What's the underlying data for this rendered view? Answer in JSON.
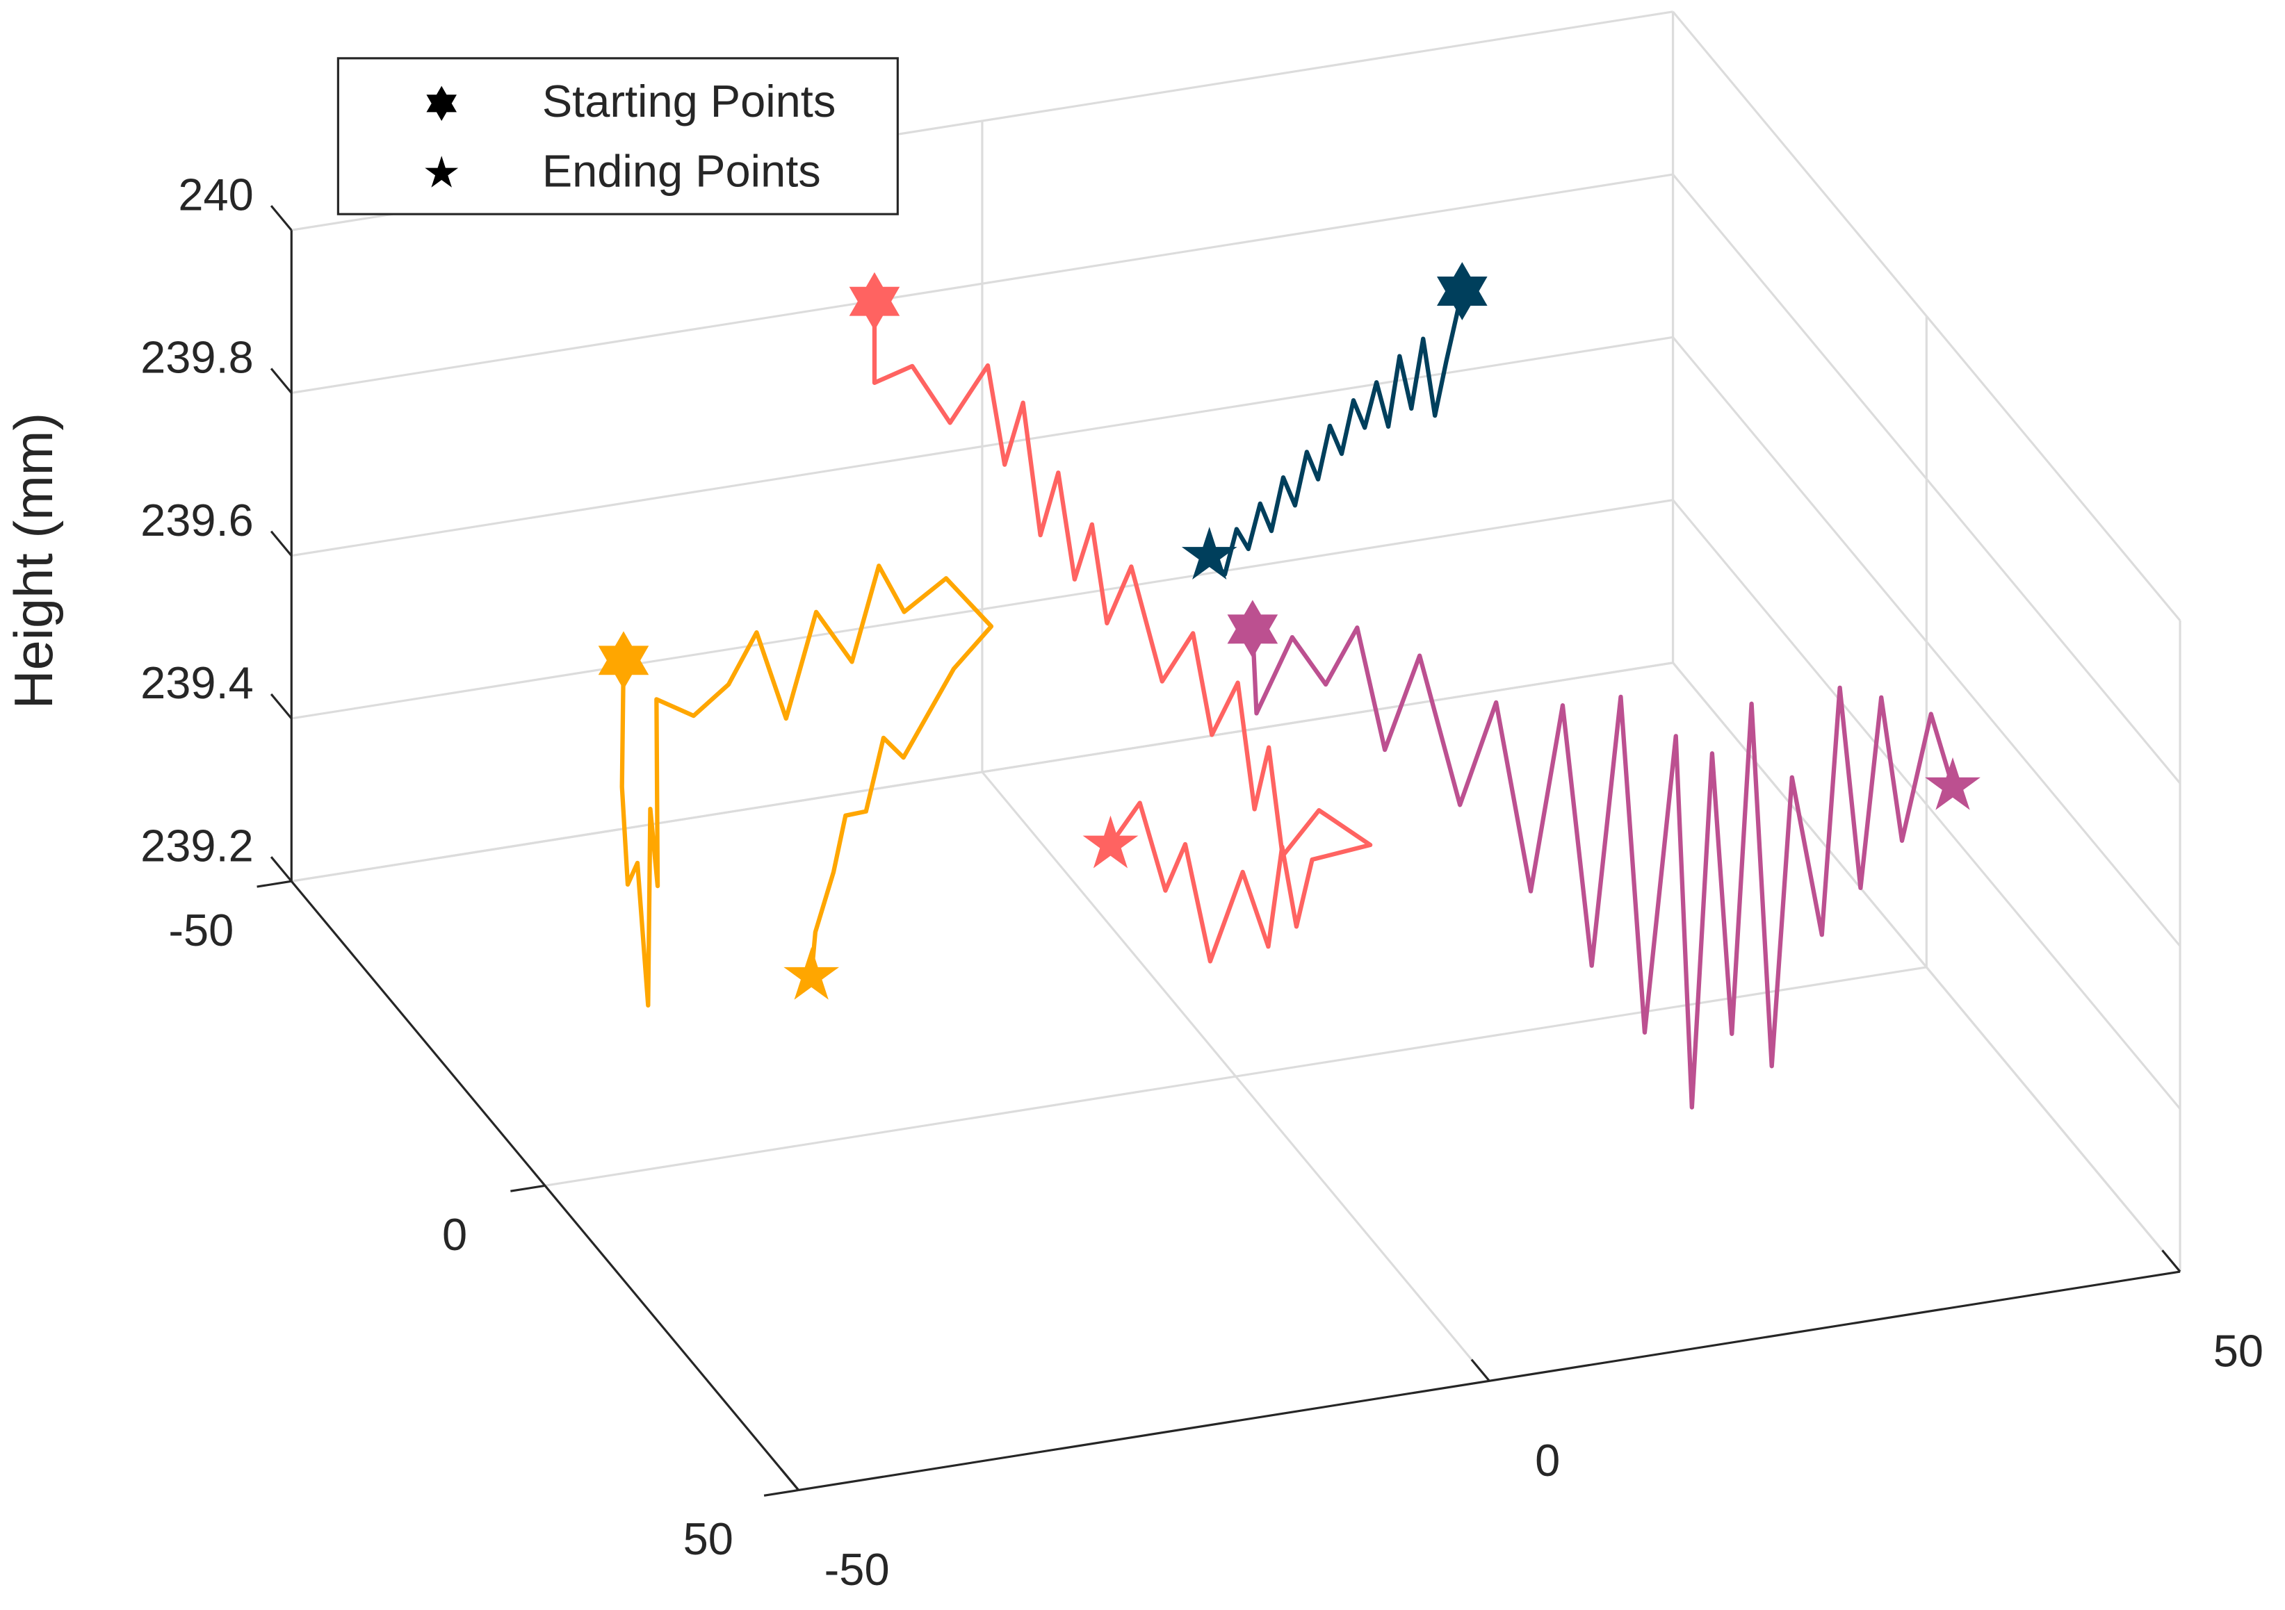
{
  "chart_data": {
    "type": "line3d",
    "zlabel": "Height (mm)",
    "xlim": [
      -50,
      50
    ],
    "ylim": [
      -50,
      50
    ],
    "zlim": [
      239.2,
      240
    ],
    "xticks": [
      -50,
      0,
      50
    ],
    "yticks": [
      -50,
      0,
      50
    ],
    "zticks": [
      239.2,
      239.4,
      239.6,
      239.8,
      240
    ],
    "grid": true,
    "legend": {
      "corner": "upper left",
      "entries": [
        {
          "label": "Starting Points",
          "marker": "hexagram"
        },
        {
          "label": "Ending Points",
          "marker": "pentagram"
        }
      ]
    },
    "series": [
      {
        "color": "#003f5c",
        "x": [
          30.3,
          29,
          28,
          27,
          26,
          25,
          24,
          23,
          22,
          21,
          20,
          19,
          18,
          17,
          16,
          15,
          14,
          13,
          12,
          11,
          10,
          8.7
        ],
        "y": [
          -37.9,
          -37.5,
          -37,
          -36.6,
          -36.2,
          -35.8,
          -35.3,
          -34.9,
          -34.5,
          -34,
          -33.6,
          -33.2,
          -32.8,
          -32.3,
          -31.9,
          -31.5,
          -31.1,
          -30.6,
          -30.2,
          -29.8,
          -29.4,
          -28.9
        ],
        "z": [
          239.8,
          239.72,
          239.66,
          239.76,
          239.68,
          239.75,
          239.67,
          239.73,
          239.68,
          239.72,
          239.66,
          239.7,
          239.64,
          239.68,
          239.62,
          239.66,
          239.6,
          239.64,
          239.59,
          239.62,
          239.57,
          239.6
        ]
      },
      {
        "color": "#ff6361",
        "x": [
          -10,
          -10,
          -8,
          -6,
          -4,
          -3,
          -2,
          -1,
          0,
          1,
          2,
          2.9,
          4,
          5.5,
          7,
          8,
          9.4,
          9.8,
          10.1,
          10.4,
          13,
          16.6,
          12.1,
          11,
          10,
          9,
          7,
          4.5,
          3.5,
          2.8,
          1.5,
          0
        ],
        "y": [
          -44,
          -44,
          -42,
          -40,
          -38,
          -37.4,
          -36.5,
          -35.8,
          -35,
          -34.5,
          -33.8,
          -33.3,
          -31.5,
          -29.5,
          -27.5,
          -26.5,
          -25.2,
          -23,
          -21,
          -19.1,
          -19,
          -18.7,
          -17.9,
          -18,
          -18.1,
          -18.1,
          -17.7,
          -17.3,
          -19.5,
          -21.5,
          -23,
          -24.7
        ],
        "z": [
          239.85,
          239.75,
          239.78,
          239.72,
          239.8,
          239.68,
          239.76,
          239.6,
          239.68,
          239.55,
          239.62,
          239.5,
          239.58,
          239.45,
          239.52,
          239.4,
          239.47,
          239.33,
          239.42,
          239.3,
          239.35,
          239.3,
          239.3,
          239.22,
          239.32,
          239.2,
          239.3,
          239.2,
          239.33,
          239.26,
          239.36,
          239.3
        ]
      },
      {
        "color": "#ffa600",
        "x": [
          -30,
          -32.5,
          -33,
          -33.4,
          -33.8,
          -31,
          -29,
          -27.8,
          -25,
          -22.4,
          -20,
          -17.5,
          -15.1,
          -12,
          -9.5,
          -7.3,
          -5,
          -2.5,
          -5,
          -8.6,
          -11,
          -13,
          -15.4,
          -17,
          -19.2,
          -21.8
        ],
        "y": [
          -39,
          -32.5,
          -30,
          -27,
          -23.8,
          -31,
          -35,
          -38.5,
          -38.8,
          -39,
          -40,
          -41,
          -41.6,
          -43,
          -44.5,
          -45.5,
          -43.5,
          -41.4,
          -42,
          -42.1,
          -39.5,
          -37.5,
          -35,
          -33,
          -30.6,
          -24.3
        ],
        "z": [
          239.5,
          239.4,
          239.3,
          239.35,
          239.2,
          239.38,
          239.25,
          239.45,
          239.42,
          239.45,
          239.5,
          239.38,
          239.5,
          239.42,
          239.52,
          239.45,
          239.5,
          239.45,
          239.4,
          239.3,
          239.35,
          239.28,
          239.3,
          239.25,
          239.2,
          239.2
        ]
      },
      {
        "color": "#bc5090",
        "x": [
          11.9,
          12,
          14,
          15.8,
          16.5,
          17.4,
          19,
          21,
          22.7,
          24.4,
          25.5,
          26.5,
          27.5,
          28.5,
          29.8,
          31,
          32.5,
          34,
          35.5,
          37,
          38.5,
          40.7,
          42,
          43.5,
          45,
          46.5,
          48.6,
          48.3
        ],
        "y": [
          -29.1,
          -28.6,
          -27,
          -25.3,
          -21,
          -18,
          -15.5,
          -13,
          -10.5,
          -8.3,
          -5,
          -2,
          1,
          3,
          5.6,
          5.5,
          5.4,
          5.2,
          5,
          4.9,
          4.8,
          4.7,
          4.7,
          4.7,
          4.7,
          4.7,
          4.7,
          9.8
        ],
        "z": [
          239.5,
          239.4,
          239.5,
          239.45,
          239.55,
          239.42,
          239.55,
          239.38,
          239.52,
          239.3,
          239.55,
          239.25,
          239.6,
          239.2,
          239.58,
          239.12,
          239.55,
          239.2,
          239.6,
          239.15,
          239.5,
          239.3,
          239.6,
          239.35,
          239.58,
          239.4,
          239.55,
          239.5
        ]
      }
    ]
  }
}
